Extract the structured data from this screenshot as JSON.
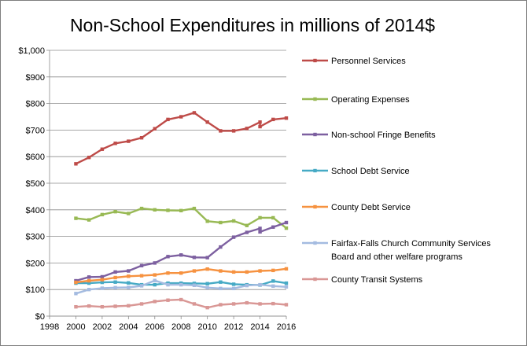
{
  "chart_data": {
    "type": "line",
    "title": "Non-School Expenditures in millions of 2014$",
    "xlabel": "",
    "ylabel": "",
    "xlim": [
      1998,
      2016
    ],
    "ylim": [
      0,
      1000
    ],
    "x_ticks": [
      1998,
      2000,
      2002,
      2004,
      2006,
      2008,
      2010,
      2012,
      2014,
      2016
    ],
    "y_ticks": [
      "$0",
      "$100",
      "$200",
      "$300",
      "$400",
      "$500",
      "$600",
      "$700",
      "$800",
      "$900",
      "$1,000"
    ],
    "grid": "horizontal",
    "legend_position": "right",
    "series": [
      {
        "name": "Personnel Services",
        "color": "#be4b48",
        "x": [
          2000,
          2001,
          2002,
          2003,
          2004,
          2005,
          2006,
          2007,
          2008,
          2009,
          2010,
          2011,
          2012,
          2013,
          2014,
          2014,
          2015,
          2016
        ],
        "y": [
          573,
          597,
          628,
          650,
          658,
          671,
          705,
          740,
          750,
          765,
          730,
          697,
          697,
          706,
          730,
          713,
          740,
          745
        ]
      },
      {
        "name": "Operating Expenses",
        "color": "#98b954",
        "x": [
          2000,
          2001,
          2002,
          2003,
          2004,
          2005,
          2006,
          2007,
          2008,
          2009,
          2010,
          2011,
          2012,
          2013,
          2014,
          2015,
          2016
        ],
        "y": [
          368,
          362,
          382,
          393,
          386,
          405,
          400,
          398,
          397,
          405,
          357,
          352,
          358,
          341,
          370,
          370,
          331
        ]
      },
      {
        "name": "Non-school Fringe Benefits",
        "color": "#7d60a0",
        "x": [
          2000,
          2001,
          2002,
          2003,
          2004,
          2005,
          2006,
          2007,
          2008,
          2009,
          2010,
          2011,
          2012,
          2013,
          2014,
          2014,
          2015,
          2016
        ],
        "y": [
          133,
          147,
          148,
          166,
          170,
          190,
          200,
          224,
          230,
          221,
          220,
          260,
          297,
          315,
          330,
          317,
          335,
          352
        ]
      },
      {
        "name": "School Debt Service",
        "color": "#46aac5",
        "x": [
          2000,
          2001,
          2002,
          2003,
          2004,
          2005,
          2006,
          2007,
          2008,
          2009,
          2010,
          2011,
          2012,
          2013,
          2014,
          2015,
          2016
        ],
        "y": [
          124,
          124,
          127,
          128,
          125,
          118,
          118,
          124,
          124,
          123,
          122,
          128,
          120,
          118,
          117,
          132,
          124
        ]
      },
      {
        "name": "County Debt Service",
        "color": "#f69240",
        "x": [
          2000,
          2001,
          2002,
          2003,
          2004,
          2005,
          2006,
          2007,
          2008,
          2009,
          2010,
          2011,
          2012,
          2013,
          2014,
          2015,
          2016
        ],
        "y": [
          127,
          133,
          137,
          145,
          150,
          152,
          155,
          162,
          162,
          170,
          177,
          170,
          166,
          166,
          170,
          172,
          178
        ]
      },
      {
        "name": "Fairfax-Falls Church Community Services\nBoard and other welfare programs",
        "color": "#a4bbe0",
        "x": [
          2000,
          2001,
          2002,
          2003,
          2004,
          2005,
          2006,
          2007,
          2008,
          2009,
          2010,
          2011,
          2012,
          2013,
          2014,
          2015,
          2016
        ],
        "y": [
          85,
          100,
          105,
          107,
          108,
          114,
          134,
          118,
          118,
          116,
          107,
          104,
          104,
          115,
          118,
          113,
          110
        ]
      },
      {
        "name": "County Transit Systems",
        "color": "#d99795",
        "x": [
          2000,
          2001,
          2002,
          2003,
          2004,
          2005,
          2006,
          2007,
          2008,
          2009,
          2010,
          2011,
          2012,
          2013,
          2014,
          2015,
          2016
        ],
        "y": [
          35,
          38,
          35,
          37,
          39,
          46,
          55,
          60,
          62,
          46,
          32,
          43,
          46,
          50,
          46,
          47,
          43
        ]
      }
    ]
  }
}
